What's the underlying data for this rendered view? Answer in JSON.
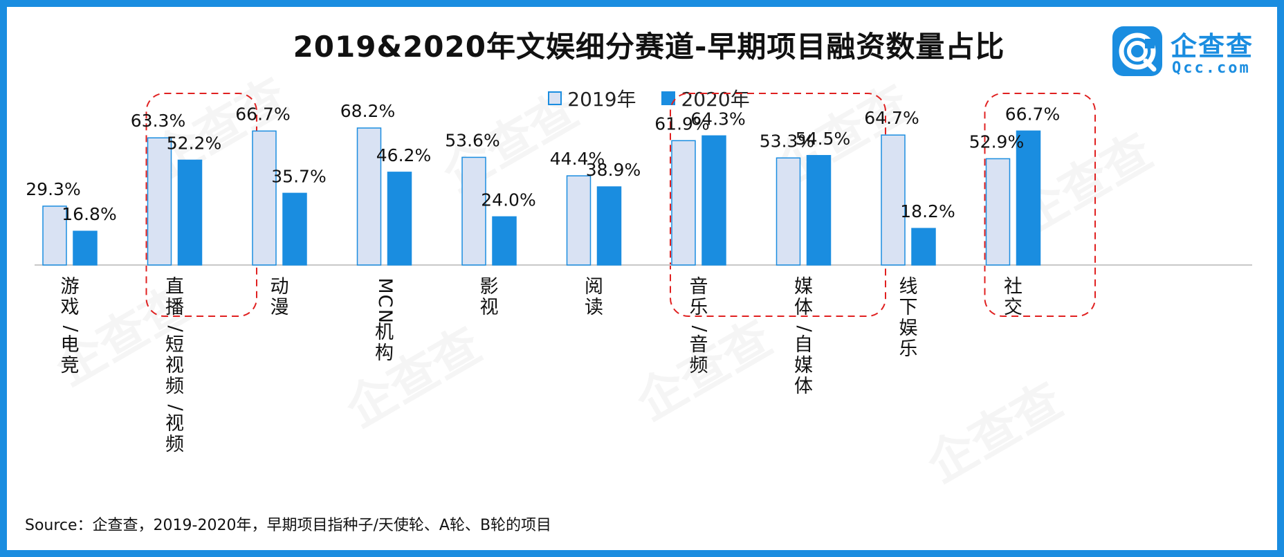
{
  "title": "2019&2020年文娱细分赛道-早期项目融资数量占比",
  "logo": {
    "name": "企查查",
    "domain": "Qcc.com",
    "brand_color": "#1a8de0"
  },
  "watermark": "企查查",
  "source": "Source：企查查，2019-2020年，早期项目指种子/天使轮、A轮、B轮的项目",
  "chart_data": {
    "type": "bar",
    "categories": [
      "游戏/电竞",
      "直播/短视频/视频",
      "动漫",
      "MCN机构",
      "影视",
      "阅读",
      "音乐/音频",
      "媒体/自媒体",
      "线下娱乐",
      "社交"
    ],
    "series": [
      {
        "name": "2019年",
        "values": [
          29.3,
          63.3,
          66.7,
          68.2,
          53.6,
          44.4,
          61.9,
          53.3,
          64.7,
          52.9
        ],
        "labels": [
          "29.3%",
          "63.3%",
          "66.7%",
          "68.2%",
          "53.6%",
          "44.4%",
          "61.9%",
          "53.3%",
          "64.7%",
          "52.9%"
        ],
        "color": "#d9e2f3",
        "stroke": "#1a8de0"
      },
      {
        "name": "2020年",
        "values": [
          16.8,
          52.2,
          35.7,
          46.2,
          24.0,
          38.9,
          64.3,
          54.5,
          18.2,
          66.7
        ],
        "labels": [
          "16.8%",
          "52.2%",
          "35.7%",
          "46.2%",
          "24.0%",
          "38.9%",
          "64.3%",
          "54.5%",
          "18.2%",
          "66.7%"
        ],
        "color": "#1a8de0",
        "stroke": "#1a8de0"
      }
    ],
    "ylim": [
      0,
      100
    ],
    "grid": false,
    "legend": "top-center",
    "highlighted_groups": [
      [
        1
      ],
      [
        6,
        7
      ],
      [
        9
      ]
    ],
    "highlight_color": "#e02020"
  }
}
